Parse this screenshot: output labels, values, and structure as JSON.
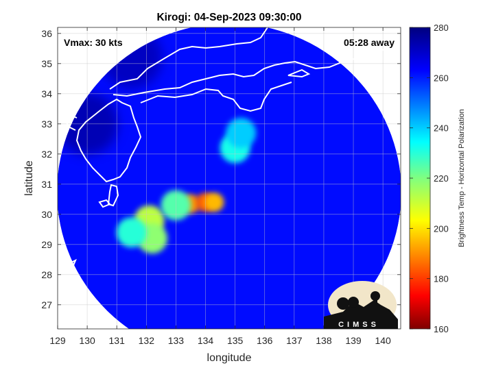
{
  "chart_data": {
    "type": "heatmap",
    "title": "Kirogi: 04-Sep-2023 09:30:00",
    "annotations": {
      "vmax": "Vmax: 30 kts",
      "time_away": "05:28 away"
    },
    "xlabel": "longitude",
    "ylabel": "latitude",
    "xlim": [
      129,
      140.6
    ],
    "ylim": [
      26.2,
      36.2
    ],
    "x_ticks": [
      "129",
      "130",
      "131",
      "132",
      "133",
      "134",
      "135",
      "136",
      "137",
      "138",
      "139",
      "140"
    ],
    "y_ticks": [
      "27",
      "28",
      "29",
      "30",
      "31",
      "32",
      "33",
      "34",
      "35",
      "36"
    ],
    "grid": true,
    "colorbar": {
      "label": "Brightness Temp - Horizontal Polarization",
      "range": [
        160,
        280
      ],
      "ticks": [
        "160",
        "180",
        "200",
        "220",
        "240",
        "260",
        "280"
      ],
      "colormap": "jet"
    },
    "swath": {
      "center_lon": 134.8,
      "center_lat": 31.2,
      "background_tb": 262,
      "features": [
        {
          "lon": 133.5,
          "lat": 30.35,
          "tb": 190
        },
        {
          "lon": 134.0,
          "lat": 30.4,
          "tb": 185
        },
        {
          "lon": 134.3,
          "lat": 30.4,
          "tb": 195
        },
        {
          "lon": 132.1,
          "lat": 29.8,
          "tb": 212
        },
        {
          "lon": 132.2,
          "lat": 29.2,
          "tb": 218
        },
        {
          "lon": 133.0,
          "lat": 30.3,
          "tb": 225
        },
        {
          "lon": 131.5,
          "lat": 29.4,
          "tb": 230
        },
        {
          "lon": 135.0,
          "lat": 32.2,
          "tb": 232
        },
        {
          "lon": 135.2,
          "lat": 32.7,
          "tb": 240
        },
        {
          "lon": 131.5,
          "lat": 35.2,
          "tb": 272
        },
        {
          "lon": 130.0,
          "lat": 33.0,
          "tb": 274
        }
      ]
    },
    "logo_text": "CIMSS"
  }
}
